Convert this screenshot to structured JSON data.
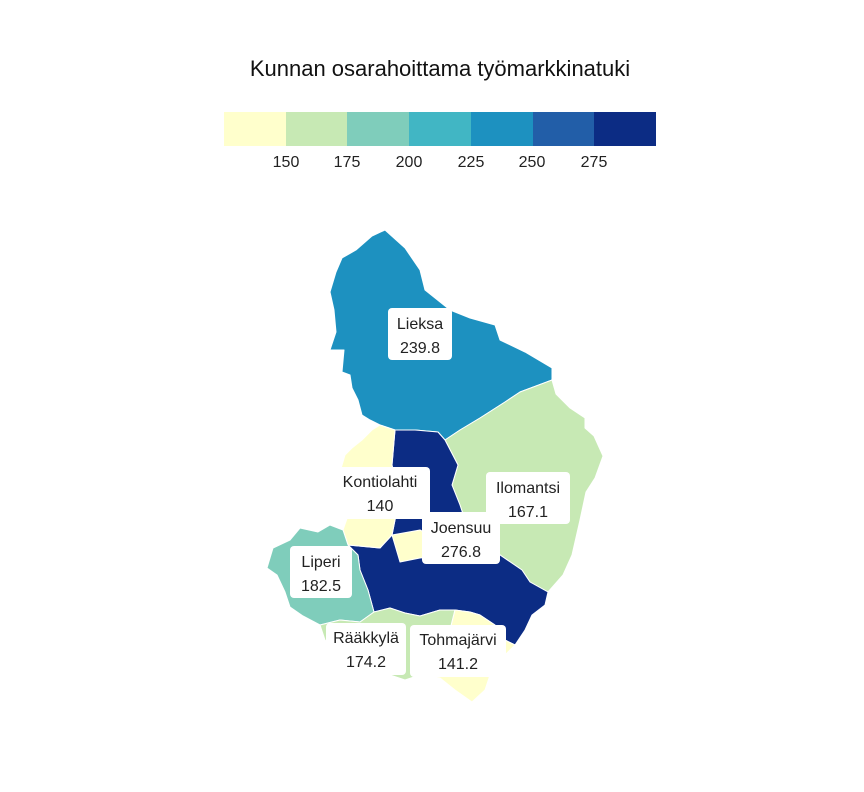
{
  "legend": {
    "title": "Kunnan osarahoittama työmarkkinatuki",
    "ticks": [
      "150",
      "175",
      "200",
      "225",
      "250",
      "275"
    ],
    "colors": [
      "#ffffcc",
      "#c7e9b4",
      "#7fcdbb",
      "#41b6c4",
      "#1d91c0",
      "#225ea8",
      "#0c2c84"
    ]
  },
  "regions": [
    {
      "name": "Lieksa",
      "value": "239.8",
      "color": "#1d91c0"
    },
    {
      "name": "Ilomantsi",
      "value": "167.1",
      "color": "#c7e9b4"
    },
    {
      "name": "Joensuu",
      "value": "276.8",
      "color": "#0c2c84"
    },
    {
      "name": "Kontiolahti",
      "value": "140",
      "color": "#ffffcc"
    },
    {
      "name": "Liperi",
      "value": "182.5",
      "color": "#7fcdbb"
    },
    {
      "name": "Rääkkylä",
      "value": "174.2",
      "color": "#c7e9b4"
    },
    {
      "name": "Tohmajärvi",
      "value": "141.2",
      "color": "#ffffcc"
    }
  ]
}
